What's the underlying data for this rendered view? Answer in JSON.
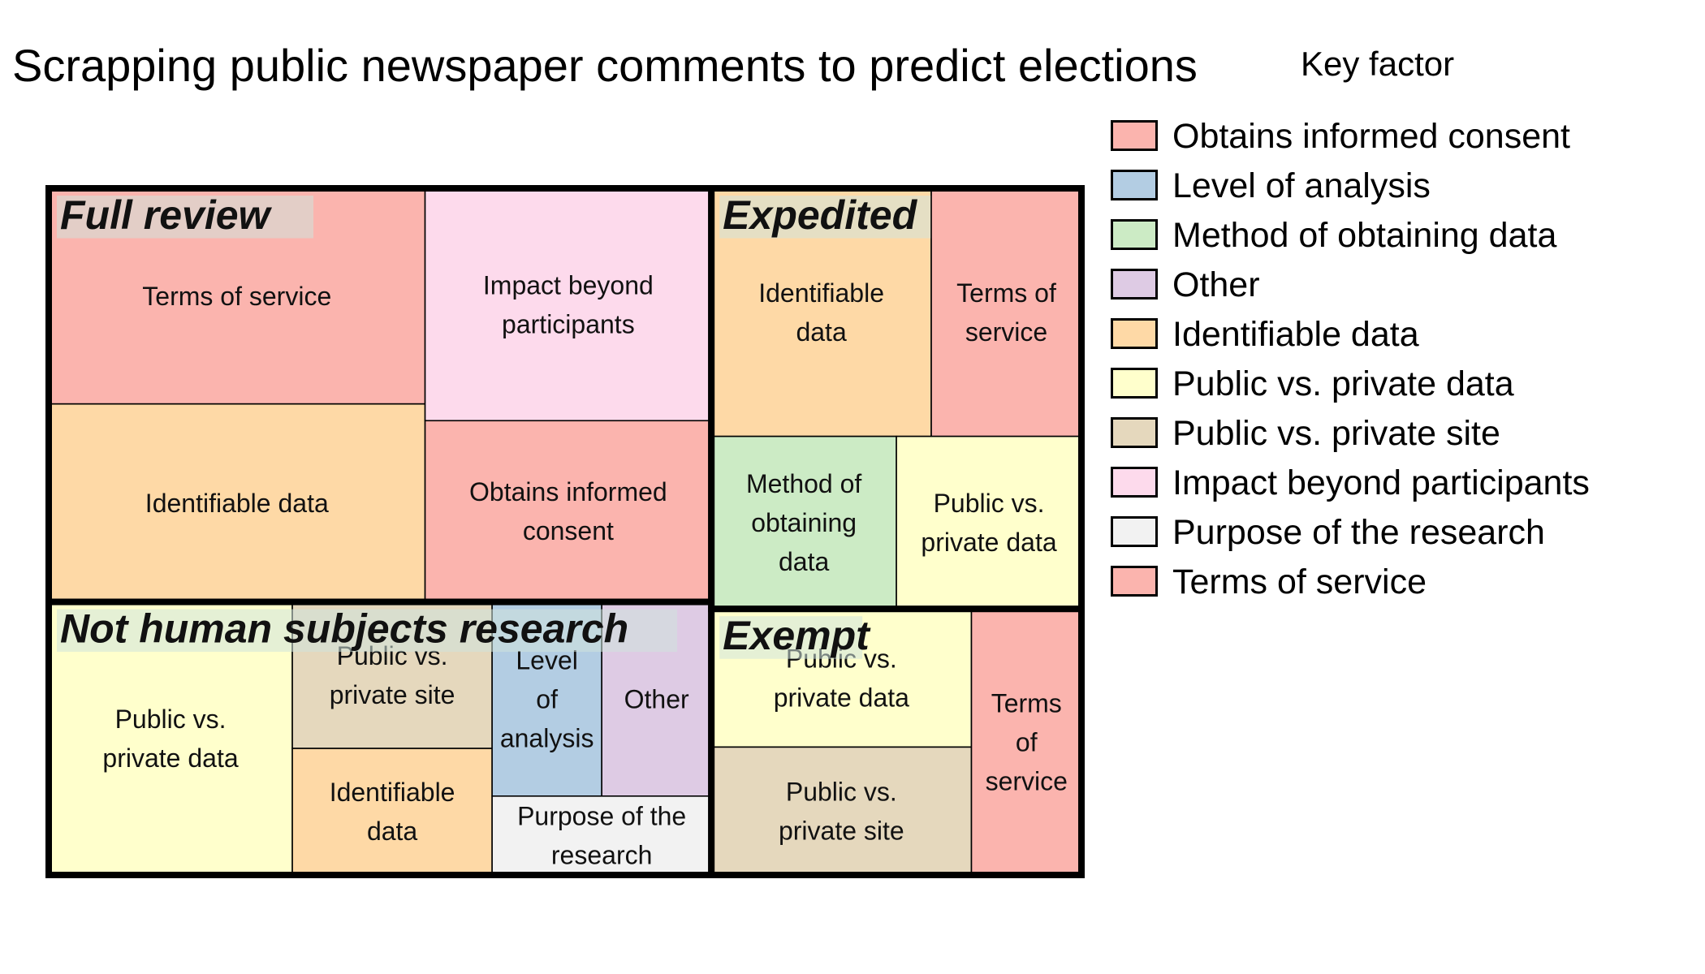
{
  "chart_data": {
    "type": "treemap",
    "title": "Scrapping public newspaper comments to predict elections",
    "legend_title": "Key factor",
    "legend_position": "right",
    "factors": [
      {
        "name": "Obtains informed consent",
        "color": "#FBB4AE"
      },
      {
        "name": "Level of analysis",
        "color": "#B3CDE3"
      },
      {
        "name": "Method of obtaining data",
        "color": "#CCEBC5"
      },
      {
        "name": "Other",
        "color": "#DECBE4"
      },
      {
        "name": "Identifiable data",
        "color": "#FED9A6"
      },
      {
        "name": "Public vs. private data",
        "color": "#FFFFCC"
      },
      {
        "name": "Public vs. private site",
        "color": "#E5D8BD"
      },
      {
        "name": "Impact beyond participants",
        "color": "#FDDAEC"
      },
      {
        "name": "Purpose of the research",
        "color": "#F2F2F2"
      },
      {
        "name": "Terms of service",
        "color": "#FBB4AE"
      }
    ],
    "groups": [
      {
        "name": "Full review",
        "items": [
          {
            "factor": "Terms of service",
            "label": "Terms of service",
            "value": 6.1
          },
          {
            "factor": "Identifiable data",
            "label": "Identifiable data",
            "value": 5.6
          },
          {
            "factor": "Impact beyond participants",
            "label": "Impact beyond participants",
            "value": 5.0
          },
          {
            "factor": "Obtains informed consent",
            "label": "Obtains informed consent",
            "value": 3.9
          }
        ]
      },
      {
        "name": "Not human subjects research",
        "items": [
          {
            "factor": "Public vs. private data",
            "label": "Public vs. private data",
            "value": 5.0
          },
          {
            "factor": "Public vs. private site",
            "label": "Public vs. private site",
            "value": 2.2
          },
          {
            "factor": "Identifiable data",
            "label": "Identifiable data",
            "value": 1.9
          },
          {
            "factor": "Level of analysis",
            "label": "Level of analysis",
            "value": 1.6
          },
          {
            "factor": "Other",
            "label": "Other",
            "value": 1.6
          },
          {
            "factor": "Purpose of the research",
            "label": "Purpose of the research",
            "value": 1.3
          }
        ]
      },
      {
        "name": "Expedited",
        "items": [
          {
            "factor": "Identifiable data",
            "label": "Identifiable data",
            "value": 4.1
          },
          {
            "factor": "Terms of service",
            "label": "Terms of service",
            "value": 2.8
          },
          {
            "factor": "Method of obtaining data",
            "label": "Method of obtaining data",
            "value": 2.4
          },
          {
            "factor": "Public vs. private data",
            "label": "Public vs. private data",
            "value": 2.4
          }
        ]
      },
      {
        "name": "Exempt",
        "items": [
          {
            "factor": "Public vs. private data",
            "label": "Public vs. private data",
            "value": 2.7
          },
          {
            "factor": "Public vs. private site",
            "label": "Public vs. private site",
            "value": 2.5
          },
          {
            "factor": "Terms of service",
            "label": "Terms of service",
            "value": 2.2
          }
        ]
      }
    ]
  }
}
